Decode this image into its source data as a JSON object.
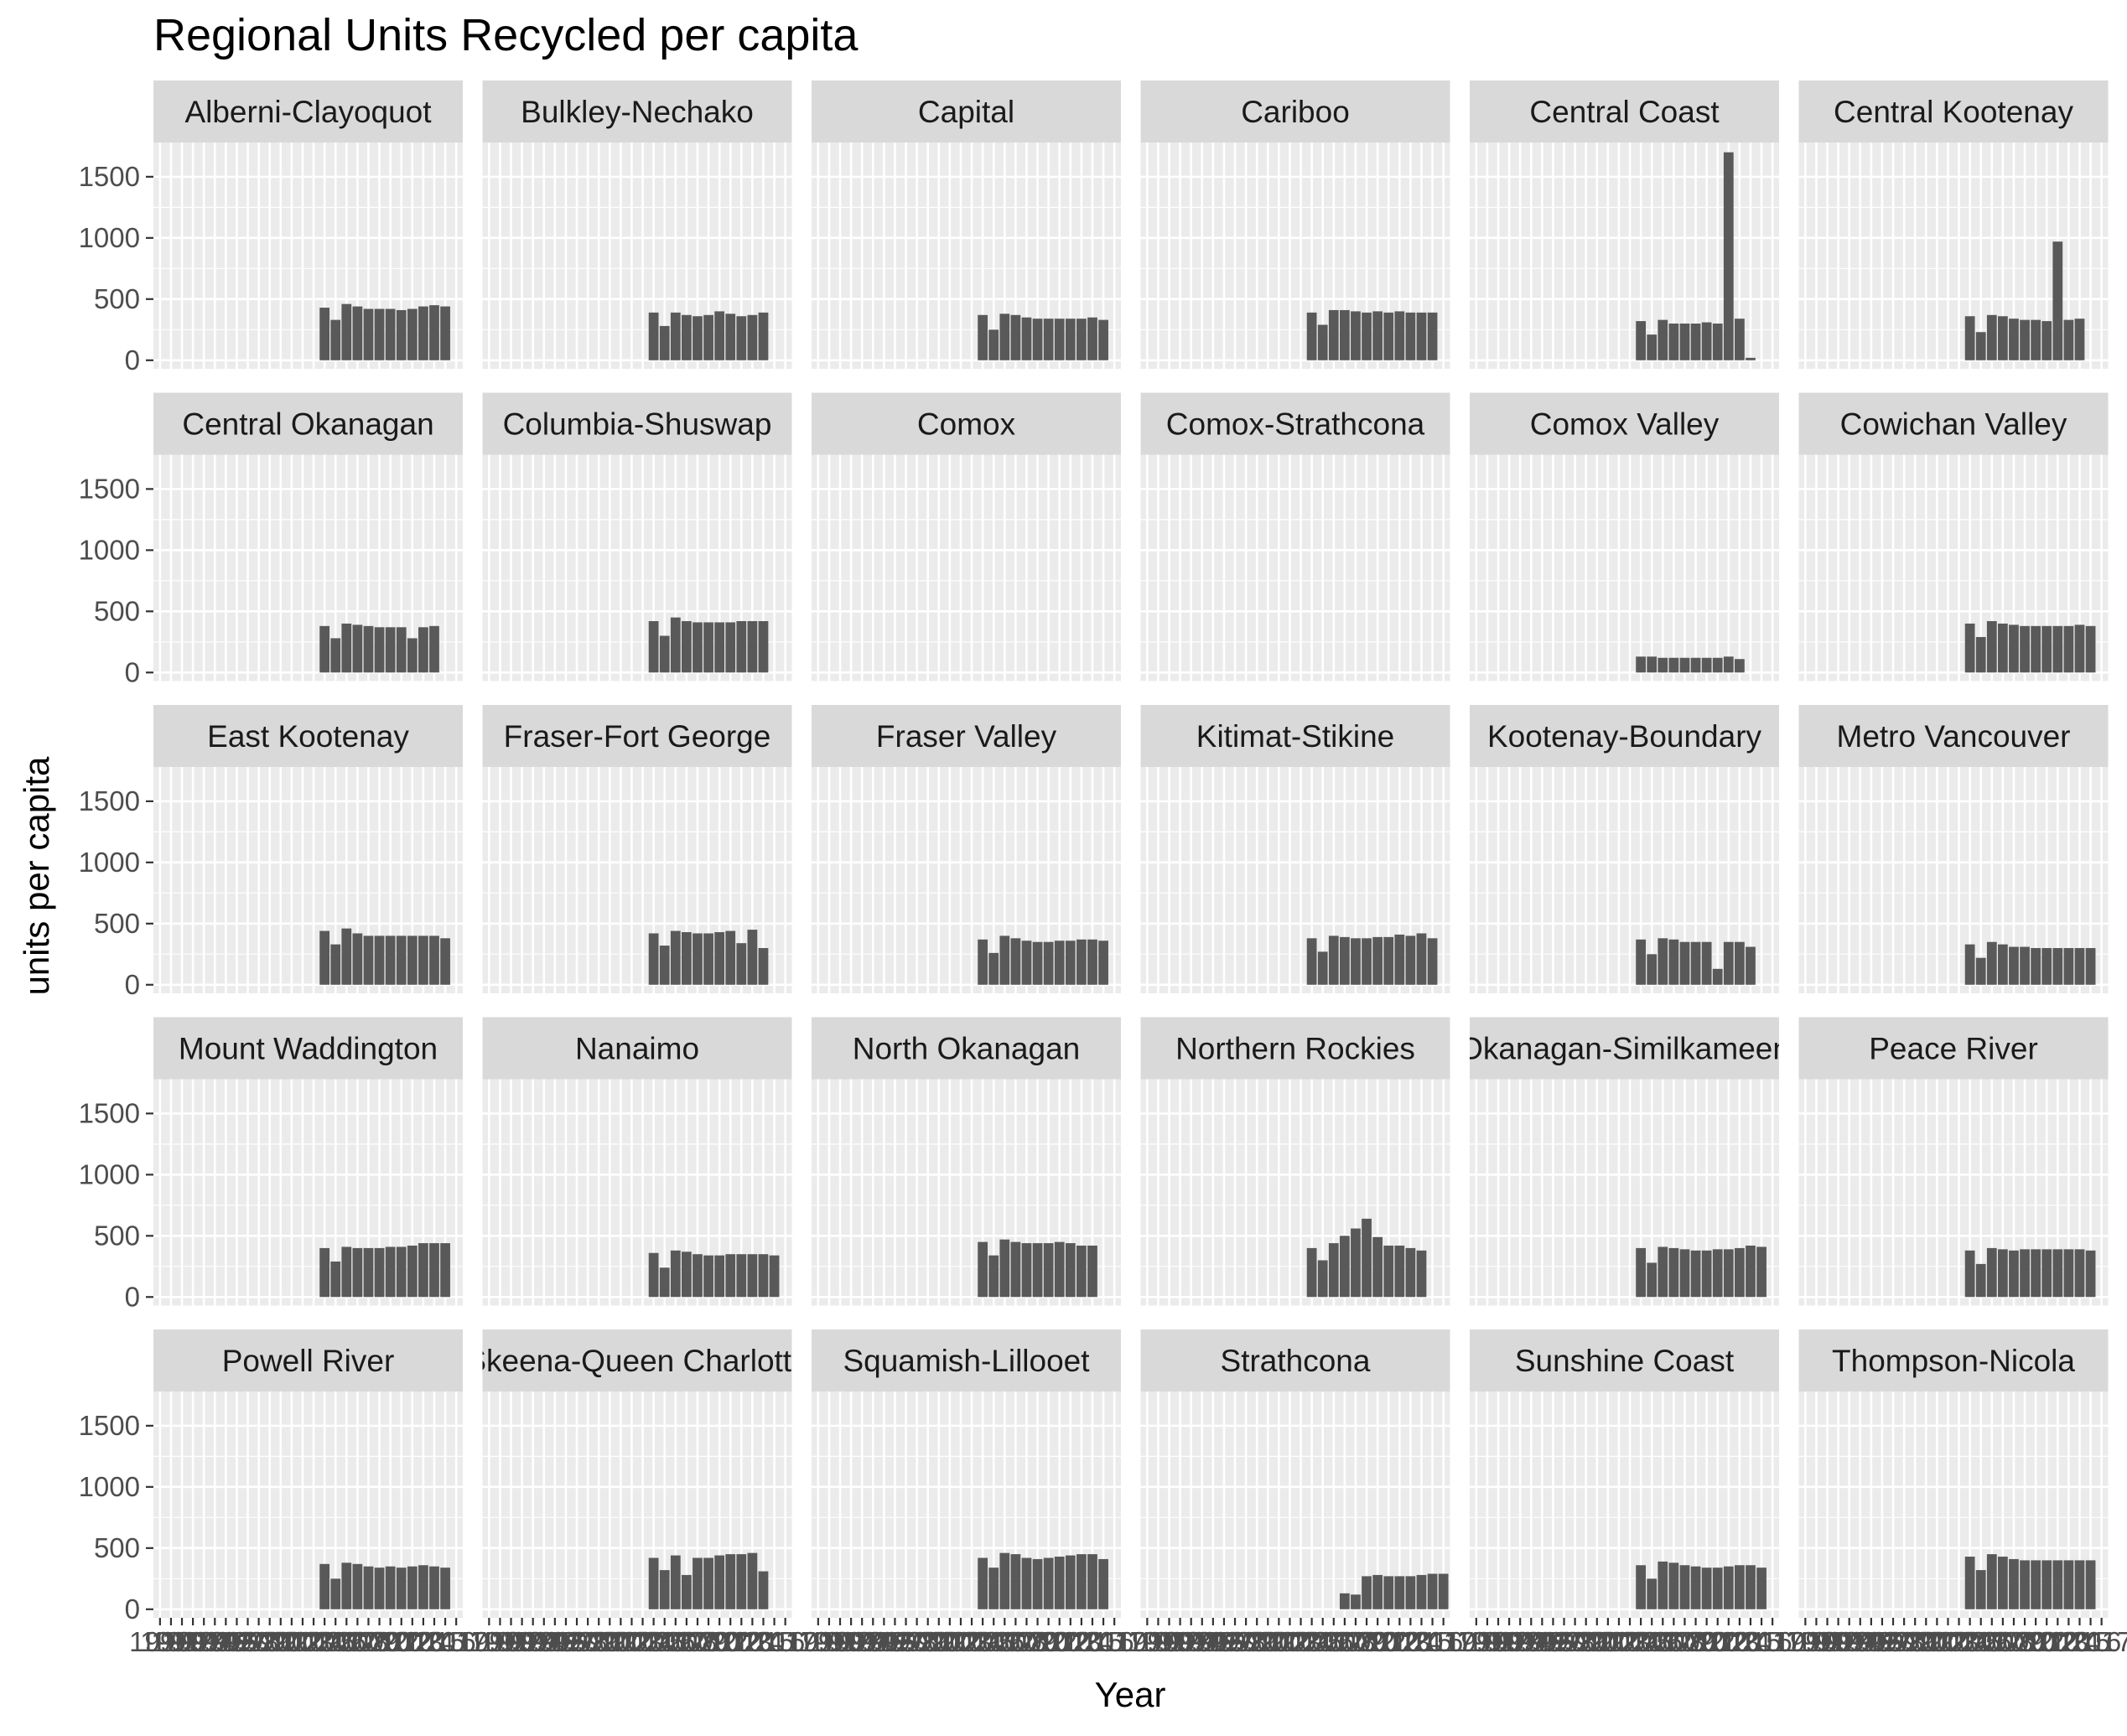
{
  "chart_data": {
    "type": "bar",
    "title": "Regional Units Recycled per capita",
    "xlabel": "Year",
    "ylabel": "units per capita",
    "ylim": [
      -70,
      1780
    ],
    "yticks": [
      0,
      500,
      1000,
      1500
    ],
    "years": [
      1990,
      1991,
      1992,
      1993,
      1994,
      1995,
      1996,
      1997,
      1998,
      1999,
      2000,
      2001,
      2002,
      2003,
      2004,
      2005,
      2006,
      2007,
      2008,
      2009,
      2010,
      2011,
      2012,
      2013,
      2014,
      2015,
      2016,
      2017
    ],
    "x_tick_labels": [
      "1990",
      "1991",
      "1992",
      "1993",
      "1994",
      "1995",
      "1996",
      "1997",
      "1998",
      "1999",
      "2000",
      "2001",
      "2002",
      "2003",
      "2004",
      "2005",
      "2006",
      "2007",
      "2008",
      "2009",
      "2010",
      "2011",
      "2012",
      "2013",
      "2014",
      "2015",
      "2016",
      "2017"
    ],
    "grid": true,
    "colors": {
      "panel_bg": "#ebebeb",
      "strip_bg": "#d9d9d9",
      "bar": "#595959",
      "grid": "#ffffff"
    },
    "first_bar_year": 2005,
    "panels": [
      {
        "name": "Alberni-Clayoquot",
        "values": [
          430,
          330,
          460,
          440,
          420,
          420,
          420,
          410,
          420,
          440,
          450,
          440
        ]
      },
      {
        "name": "Bulkley-Nechako",
        "values": [
          390,
          280,
          390,
          370,
          360,
          370,
          400,
          380,
          360,
          370,
          390,
          0
        ]
      },
      {
        "name": "Capital",
        "values": [
          370,
          250,
          380,
          370,
          350,
          340,
          340,
          340,
          340,
          340,
          350,
          330
        ]
      },
      {
        "name": "Cariboo",
        "values": [
          390,
          290,
          410,
          410,
          400,
          390,
          400,
          390,
          400,
          390,
          390,
          390
        ]
      },
      {
        "name": "Central Coast",
        "values": [
          320,
          210,
          330,
          300,
          300,
          300,
          310,
          300,
          1700,
          340,
          20,
          0
        ]
      },
      {
        "name": "Central Kootenay",
        "values": [
          360,
          230,
          370,
          360,
          340,
          330,
          330,
          320,
          970,
          330,
          340,
          0
        ]
      },
      {
        "name": "Central Okanagan",
        "values": [
          380,
          280,
          400,
          390,
          380,
          370,
          370,
          370,
          280,
          370,
          380,
          0
        ]
      },
      {
        "name": "Columbia-Shuswap",
        "values": [
          420,
          300,
          450,
          420,
          410,
          410,
          410,
          410,
          420,
          420,
          420,
          0
        ]
      },
      {
        "name": "Comox",
        "values": []
      },
      {
        "name": "Comox-Strathcona",
        "values": []
      },
      {
        "name": "Comox Valley",
        "values": [
          130,
          130,
          120,
          120,
          120,
          120,
          120,
          120,
          130,
          110
        ]
      },
      {
        "name": "Cowichan Valley",
        "values": [
          400,
          290,
          420,
          400,
          390,
          380,
          380,
          380,
          380,
          380,
          390,
          380
        ]
      },
      {
        "name": "East Kootenay",
        "values": [
          440,
          330,
          460,
          420,
          400,
          400,
          400,
          400,
          400,
          400,
          400,
          380
        ]
      },
      {
        "name": "Fraser-Fort George",
        "values": [
          420,
          320,
          440,
          430,
          420,
          420,
          430,
          440,
          340,
          450,
          300,
          0
        ]
      },
      {
        "name": "Fraser Valley",
        "values": [
          370,
          260,
          400,
          380,
          360,
          350,
          350,
          360,
          360,
          370,
          370,
          360
        ]
      },
      {
        "name": "Kitimat-Stikine",
        "values": [
          380,
          270,
          400,
          390,
          380,
          380,
          390,
          390,
          410,
          400,
          420,
          380
        ]
      },
      {
        "name": "Kootenay-Boundary",
        "values": [
          370,
          250,
          380,
          370,
          350,
          350,
          350,
          130,
          350,
          350,
          310,
          0
        ]
      },
      {
        "name": "Metro Vancouver",
        "values": [
          330,
          220,
          350,
          330,
          310,
          310,
          300,
          300,
          300,
          300,
          300,
          300
        ]
      },
      {
        "name": "Mount Waddington",
        "values": [
          400,
          290,
          410,
          400,
          400,
          400,
          410,
          410,
          420,
          440,
          440,
          440
        ]
      },
      {
        "name": "Nanaimo",
        "values": [
          360,
          240,
          380,
          370,
          350,
          340,
          340,
          350,
          350,
          350,
          350,
          340
        ]
      },
      {
        "name": "North Okanagan",
        "values": [
          450,
          340,
          470,
          450,
          440,
          440,
          440,
          450,
          440,
          420,
          420,
          0
        ]
      },
      {
        "name": "Northern Rockies",
        "values": [
          400,
          300,
          440,
          500,
          560,
          640,
          490,
          420,
          420,
          400,
          380,
          0
        ]
      },
      {
        "name": "Okanagan-Similkameen",
        "values": [
          400,
          280,
          410,
          400,
          390,
          380,
          380,
          390,
          390,
          400,
          420,
          410
        ]
      },
      {
        "name": "Peace River",
        "values": [
          380,
          270,
          400,
          390,
          380,
          390,
          390,
          390,
          390,
          390,
          390,
          380
        ]
      },
      {
        "name": "Powell River",
        "values": [
          370,
          250,
          380,
          370,
          350,
          340,
          350,
          340,
          350,
          360,
          350,
          340
        ]
      },
      {
        "name": "Skeena-Queen Charlotte",
        "values": [
          420,
          320,
          440,
          280,
          420,
          420,
          440,
          450,
          450,
          460,
          310,
          0
        ]
      },
      {
        "name": "Squamish-Lillooet",
        "values": [
          420,
          340,
          460,
          450,
          420,
          410,
          420,
          430,
          440,
          450,
          450,
          410
        ]
      },
      {
        "name": "Strathcona",
        "first_bar_year": 2008,
        "values": [
          130,
          120,
          270,
          280,
          270,
          270,
          270,
          280,
          290,
          290
        ]
      },
      {
        "name": "Sunshine Coast",
        "values": [
          360,
          250,
          390,
          380,
          360,
          350,
          340,
          340,
          350,
          360,
          360,
          340
        ]
      },
      {
        "name": "Thompson-Nicola",
        "values": [
          430,
          320,
          450,
          430,
          410,
          400,
          400,
          400,
          400,
          400,
          400,
          400
        ]
      }
    ]
  }
}
